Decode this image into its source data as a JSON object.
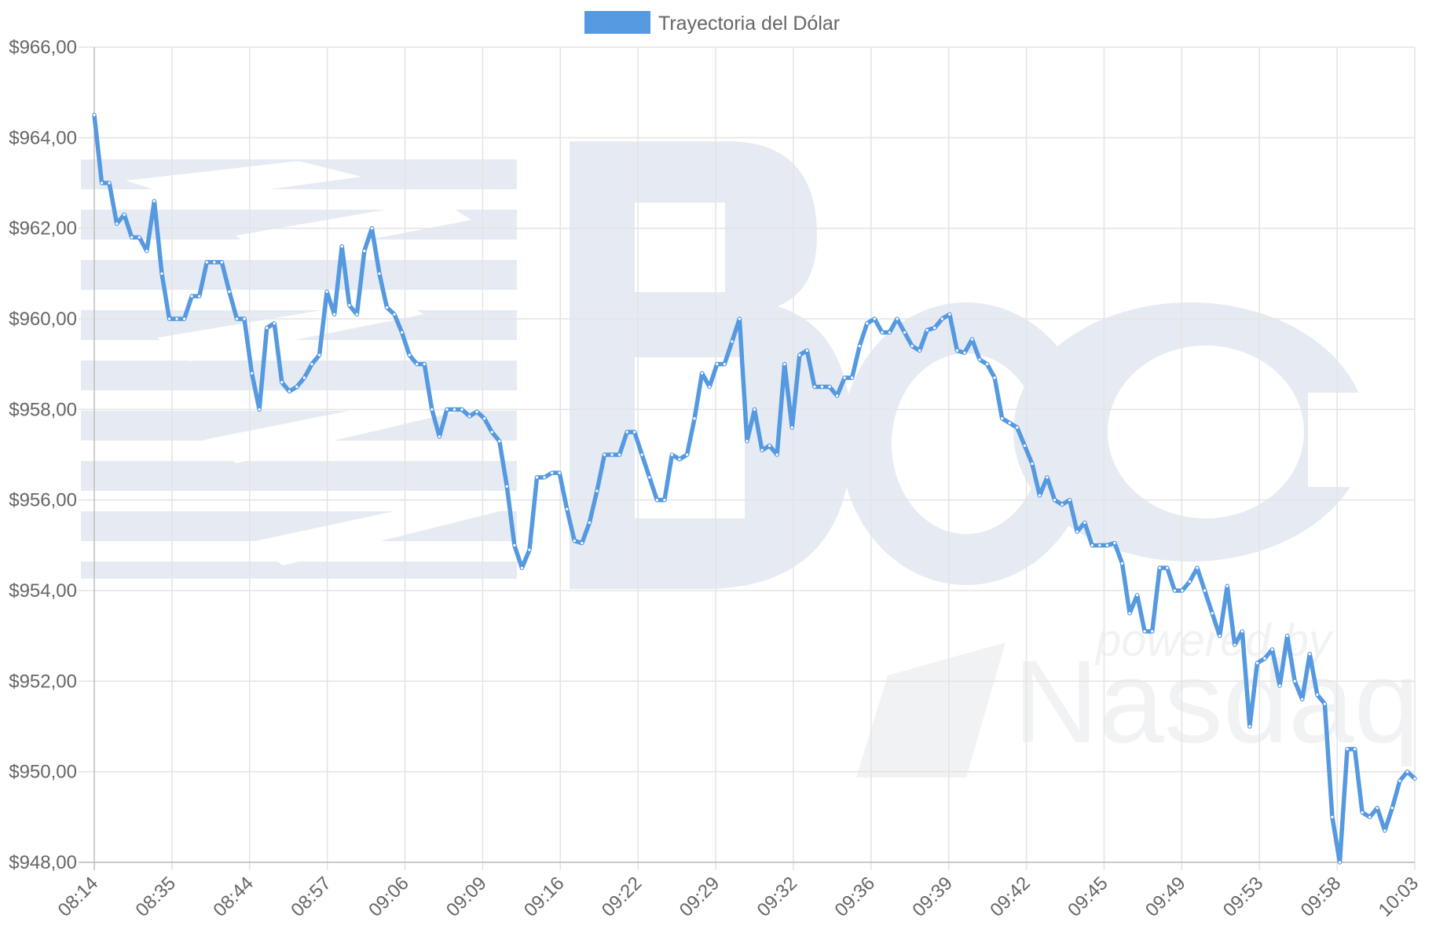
{
  "chart_data": {
    "type": "line",
    "title": "",
    "xlabel": "",
    "ylabel": "",
    "ylim": [
      948,
      966
    ],
    "y_ticks": [
      966,
      964,
      962,
      960,
      958,
      956,
      954,
      952,
      950,
      948
    ],
    "y_tick_labels": [
      "$966,00",
      "$964,00",
      "$962,00",
      "$960,00",
      "$958,00",
      "$956,00",
      "$954,00",
      "$952,00",
      "$950,00",
      "$948,00"
    ],
    "x_tick_labels": [
      "08:14",
      "08:35",
      "08:44",
      "08:57",
      "09:06",
      "09:09",
      "09:16",
      "09:22",
      "09:29",
      "09:32",
      "09:36",
      "09:39",
      "09:42",
      "09:45",
      "09:49",
      "09:53",
      "09:58",
      "10:03"
    ],
    "grid": true,
    "legend": {
      "position": "top-center",
      "color": "#5599e0"
    },
    "watermark": {
      "text": "Bec",
      "subtext_1": "powered by",
      "subtext_2": "Nasdaq"
    },
    "series": [
      {
        "name": "Trayectoria del Dólar",
        "color": "#5599e0",
        "values": [
          964.5,
          963.0,
          963.0,
          962.1,
          962.3,
          961.8,
          961.8,
          961.5,
          962.6,
          961.0,
          960.0,
          960.0,
          960.0,
          960.5,
          960.5,
          961.25,
          961.25,
          961.25,
          960.6,
          960.0,
          960.0,
          958.8,
          958.0,
          959.8,
          959.9,
          958.6,
          958.4,
          958.5,
          958.7,
          959.0,
          959.2,
          960.6,
          960.1,
          961.6,
          960.3,
          960.1,
          961.5,
          962.0,
          961.0,
          960.25,
          960.1,
          959.7,
          959.2,
          959.0,
          959.0,
          958.0,
          957.4,
          958.0,
          958.0,
          958.0,
          957.85,
          957.95,
          957.8,
          957.5,
          957.3,
          956.3,
          955.0,
          954.5,
          954.9,
          956.5,
          956.5,
          956.6,
          956.6,
          955.8,
          955.1,
          955.05,
          955.5,
          956.2,
          957.0,
          957.0,
          957.0,
          957.5,
          957.5,
          957.0,
          956.5,
          956.0,
          956.0,
          957.0,
          956.9,
          957.0,
          957.8,
          958.8,
          958.5,
          959.0,
          959.0,
          959.5,
          960.0,
          957.3,
          958.0,
          957.1,
          957.2,
          957.0,
          959.0,
          957.6,
          959.2,
          959.3,
          958.5,
          958.5,
          958.5,
          958.3,
          958.7,
          958.7,
          959.4,
          959.9,
          960.0,
          959.7,
          959.7,
          960.0,
          959.7,
          959.4,
          959.3,
          959.75,
          959.8,
          960.0,
          960.1,
          959.3,
          959.25,
          959.55,
          959.1,
          959.0,
          958.7,
          957.8,
          957.7,
          957.6,
          957.2,
          956.8,
          956.1,
          956.5,
          956.0,
          955.9,
          956.0,
          955.3,
          955.5,
          955.0,
          955.0,
          955.0,
          955.05,
          954.6,
          953.5,
          953.9,
          953.1,
          953.1,
          954.5,
          954.5,
          954.0,
          954.0,
          954.2,
          954.5,
          954.0,
          953.5,
          953.0,
          954.1,
          952.8,
          953.1,
          951.0,
          952.4,
          952.5,
          952.7,
          951.9,
          953.0,
          952.0,
          951.6,
          952.6,
          951.7,
          951.5,
          949.0,
          948.0,
          950.5,
          950.5,
          949.1,
          949.0,
          949.2,
          948.7,
          949.2,
          949.8,
          950.0,
          949.85
        ]
      }
    ]
  }
}
